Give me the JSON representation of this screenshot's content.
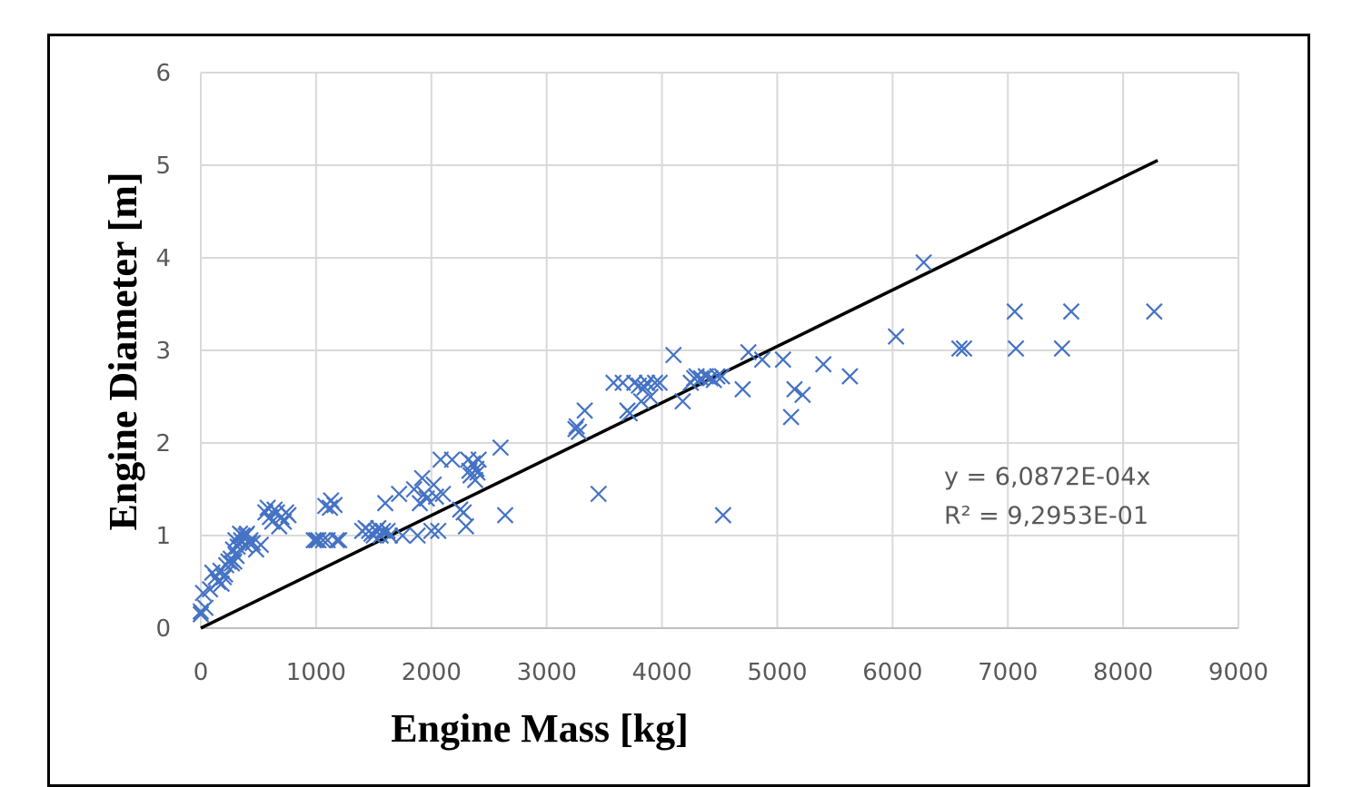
{
  "chart_data": {
    "type": "scatter",
    "xlabel": "Engine Mass [kg]",
    "ylabel": "Engine Diameter [m]",
    "xlim": [
      0,
      9000
    ],
    "ylim": [
      0,
      6
    ],
    "x_ticks": [
      "0",
      "1000",
      "2000",
      "3000",
      "4000",
      "5000",
      "6000",
      "7000",
      "8000",
      "9000"
    ],
    "y_ticks": [
      "0",
      "1",
      "2",
      "3",
      "4",
      "5",
      "6"
    ],
    "grid": true,
    "marker": "x",
    "marker_color": "#4472c4",
    "trendline": {
      "color": "#000000",
      "slope": 0.00060872,
      "x_range": [
        0,
        8300
      ],
      "equation": "y = 6,0872E-04x",
      "r_squared": "R² = 9,2953E-01"
    },
    "points": [
      [
        0,
        0.15
      ],
      [
        0,
        0.18
      ],
      [
        20,
        0.38
      ],
      [
        40,
        0.22
      ],
      [
        80,
        0.42
      ],
      [
        100,
        0.6
      ],
      [
        130,
        0.55
      ],
      [
        150,
        0.5
      ],
      [
        170,
        0.62
      ],
      [
        180,
        0.48
      ],
      [
        200,
        0.55
      ],
      [
        210,
        0.58
      ],
      [
        220,
        0.68
      ],
      [
        240,
        0.72
      ],
      [
        260,
        0.75
      ],
      [
        270,
        0.7
      ],
      [
        280,
        0.85
      ],
      [
        290,
        0.72
      ],
      [
        300,
        0.95
      ],
      [
        310,
        0.78
      ],
      [
        320,
        0.88
      ],
      [
        340,
        1.02
      ],
      [
        350,
        0.95
      ],
      [
        360,
        1.0
      ],
      [
        380,
        0.9
      ],
      [
        390,
        1.0
      ],
      [
        400,
        1.02
      ],
      [
        420,
        0.92
      ],
      [
        430,
        0.95
      ],
      [
        450,
        0.92
      ],
      [
        480,
        0.85
      ],
      [
        520,
        0.9
      ],
      [
        560,
        1.25
      ],
      [
        580,
        1.3
      ],
      [
        600,
        1.2
      ],
      [
        620,
        1.15
      ],
      [
        640,
        1.28
      ],
      [
        660,
        1.25
      ],
      [
        680,
        1.1
      ],
      [
        700,
        1.2
      ],
      [
        720,
        1.15
      ],
      [
        740,
        1.25
      ],
      [
        760,
        1.22
      ],
      [
        980,
        0.95
      ],
      [
        1000,
        0.95
      ],
      [
        1020,
        0.95
      ],
      [
        1060,
        0.95
      ],
      [
        1080,
        1.32
      ],
      [
        1100,
        0.95
      ],
      [
        1120,
        1.3
      ],
      [
        1130,
        1.38
      ],
      [
        1160,
        1.33
      ],
      [
        1180,
        0.95
      ],
      [
        1200,
        0.95
      ],
      [
        1400,
        1.05
      ],
      [
        1430,
        1.08
      ],
      [
        1460,
        1.05
      ],
      [
        1480,
        1.02
      ],
      [
        1500,
        1.0
      ],
      [
        1520,
        1.05
      ],
      [
        1540,
        1.08
      ],
      [
        1560,
        1.0
      ],
      [
        1580,
        1.05
      ],
      [
        1600,
        1.35
      ],
      [
        1620,
        1.05
      ],
      [
        1640,
        1.0
      ],
      [
        1720,
        1.45
      ],
      [
        1750,
        1.0
      ],
      [
        1850,
        1.5
      ],
      [
        1880,
        1.0
      ],
      [
        1900,
        1.35
      ],
      [
        1920,
        1.62
      ],
      [
        1940,
        1.45
      ],
      [
        1960,
        1.4
      ],
      [
        2000,
        1.05
      ],
      [
        2020,
        1.55
      ],
      [
        2040,
        1.42
      ],
      [
        2060,
        1.05
      ],
      [
        2080,
        1.82
      ],
      [
        2100,
        1.45
      ],
      [
        2180,
        1.82
      ],
      [
        2250,
        1.28
      ],
      [
        2280,
        1.25
      ],
      [
        2300,
        1.1
      ],
      [
        2320,
        1.82
      ],
      [
        2330,
        1.7
      ],
      [
        2340,
        1.65
      ],
      [
        2360,
        1.78
      ],
      [
        2380,
        1.6
      ],
      [
        2390,
        1.72
      ],
      [
        2400,
        1.68
      ],
      [
        2410,
        1.82
      ],
      [
        2600,
        1.95
      ],
      [
        2640,
        1.22
      ],
      [
        3250,
        2.15
      ],
      [
        3260,
        2.18
      ],
      [
        3280,
        2.12
      ],
      [
        3330,
        2.35
      ],
      [
        3450,
        1.45
      ],
      [
        3580,
        2.65
      ],
      [
        3660,
        2.65
      ],
      [
        3700,
        2.35
      ],
      [
        3720,
        2.32
      ],
      [
        3760,
        2.65
      ],
      [
        3800,
        2.62
      ],
      [
        3820,
        2.45
      ],
      [
        3850,
        2.6
      ],
      [
        3870,
        2.65
      ],
      [
        3900,
        2.5
      ],
      [
        3940,
        2.65
      ],
      [
        3980,
        2.65
      ],
      [
        4100,
        2.95
      ],
      [
        4180,
        2.45
      ],
      [
        4250,
        2.65
      ],
      [
        4280,
        2.7
      ],
      [
        4300,
        2.72
      ],
      [
        4340,
        2.7
      ],
      [
        4380,
        2.72
      ],
      [
        4420,
        2.7
      ],
      [
        4450,
        2.68
      ],
      [
        4480,
        2.72
      ],
      [
        4520,
        2.72
      ],
      [
        4530,
        1.22
      ],
      [
        4700,
        2.58
      ],
      [
        4750,
        2.98
      ],
      [
        4870,
        2.9
      ],
      [
        5050,
        2.9
      ],
      [
        5120,
        2.28
      ],
      [
        5150,
        2.58
      ],
      [
        5220,
        2.52
      ],
      [
        5400,
        2.85
      ],
      [
        5630,
        2.72
      ],
      [
        6030,
        3.15
      ],
      [
        6270,
        3.95
      ],
      [
        6580,
        3.02
      ],
      [
        6620,
        3.02
      ],
      [
        7060,
        3.42
      ],
      [
        7070,
        3.02
      ],
      [
        7470,
        3.02
      ],
      [
        7550,
        3.42
      ],
      [
        8270,
        3.42
      ]
    ]
  }
}
